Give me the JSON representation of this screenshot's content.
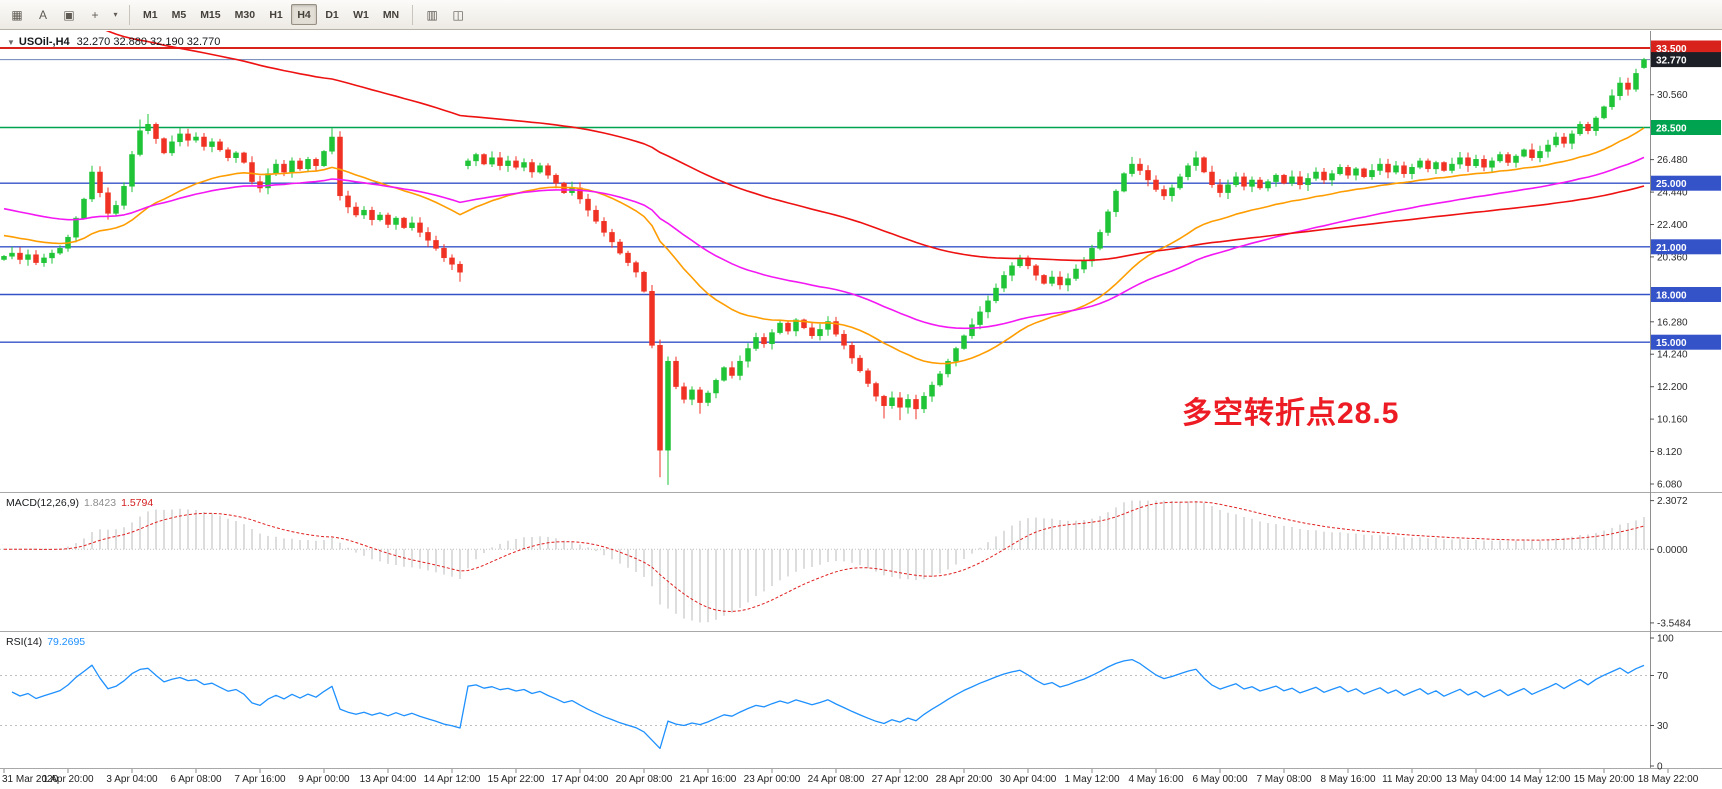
{
  "toolbar": {
    "left_icons": [
      {
        "name": "charts-bar-icon",
        "glyph": "▦"
      },
      {
        "name": "text-tool-icon",
        "glyph": "A"
      },
      {
        "name": "chart-window-icon",
        "glyph": "▣"
      },
      {
        "name": "crosshair-tool-icon",
        "glyph": "+"
      },
      {
        "name": "tools-dropdown-caret-icon",
        "glyph": "▾"
      }
    ],
    "timeframes": [
      "M1",
      "M5",
      "M15",
      "M30",
      "H1",
      "H4",
      "D1",
      "W1",
      "MN"
    ],
    "active_timeframe": "H4",
    "right_icons": [
      {
        "name": "tile-windows-icon",
        "glyph": "▥"
      },
      {
        "name": "new-chart-icon",
        "glyph": "◫"
      }
    ]
  },
  "chart": {
    "collapse_glyph": "▼",
    "symbol_period": "USOil-,H4",
    "ohlc": "32.270 32.880 32.190 32.770",
    "annotation": {
      "text": "多空转折点28.5",
      "color": "#ed1c24"
    }
  },
  "macd": {
    "label": "MACD(12,26,9)",
    "value_main": "1.8423",
    "value_signal": "1.5794",
    "axis": [
      "2.3072",
      "0.0000",
      "-3.5484"
    ]
  },
  "rsi": {
    "label": "RSI(14)",
    "value": "79.2695",
    "axis": [
      "100",
      "70",
      "30",
      "0"
    ]
  },
  "chart_data": {
    "type": "candlestick",
    "symbol": "USOil-",
    "timeframe": "H4",
    "ohlc_display": {
      "open": "32.270",
      "high": "32.880",
      "low": "32.190",
      "close": "32.770"
    },
    "y_ticks": [
      "30.560",
      "26.480",
      "24.440",
      "22.400",
      "20.360",
      "16.280",
      "14.240",
      "12.200",
      "10.160",
      "8.120",
      "6.080"
    ],
    "x_labels": [
      "31 Mar 2020",
      "1 Apr 20:00",
      "3 Apr 04:00",
      "6 Apr 08:00",
      "7 Apr 16:00",
      "9 Apr 00:00",
      "13 Apr 04:00",
      "14 Apr 12:00",
      "15 Apr 22:00",
      "17 Apr 04:00",
      "20 Apr 08:00",
      "21 Apr 16:00",
      "23 Apr 00:00",
      "24 Apr 08:00",
      "27 Apr 12:00",
      "28 Apr 20:00",
      "30 Apr 04:00",
      "1 May 12:00",
      "4 May 16:00",
      "6 May 00:00",
      "7 May 08:00",
      "8 May 16:00",
      "11 May 20:00",
      "13 May 04:00",
      "14 May 12:00",
      "15 May 20:00",
      "18 May 22:00"
    ],
    "closes": [
      20.4,
      20.6,
      20.2,
      20.5,
      20.0,
      20.3,
      20.6,
      20.9,
      21.6,
      22.8,
      24.0,
      25.7,
      24.4,
      23.1,
      23.6,
      24.8,
      26.8,
      28.3,
      28.7,
      27.8,
      26.9,
      27.6,
      28.1,
      27.7,
      27.9,
      27.3,
      27.6,
      27.1,
      26.6,
      26.9,
      26.3,
      25.1,
      24.7,
      25.6,
      26.2,
      25.7,
      26.4,
      25.9,
      26.5,
      26.1,
      27.0,
      27.9,
      24.2,
      23.5,
      23.0,
      23.3,
      22.7,
      23.0,
      22.4,
      22.8,
      22.2,
      22.5,
      21.9,
      21.4,
      20.9,
      20.3,
      19.9,
      19.4,
      26.4,
      26.8,
      26.2,
      26.6,
      26.1,
      26.4,
      26.0,
      26.3,
      25.7,
      26.1,
      25.5,
      25.0,
      24.4,
      24.7,
      24.0,
      23.3,
      22.6,
      21.9,
      21.3,
      20.6,
      20.0,
      19.4,
      18.2,
      14.8,
      8.2,
      13.8,
      12.2,
      11.4,
      12.0,
      11.2,
      11.8,
      12.6,
      13.4,
      12.9,
      13.8,
      14.6,
      15.3,
      14.9,
      15.6,
      16.2,
      15.7,
      16.4,
      15.9,
      15.4,
      15.8,
      16.3,
      15.5,
      14.8,
      14.0,
      13.2,
      12.4,
      11.6,
      11.0,
      11.5,
      10.9,
      11.4,
      10.8,
      11.6,
      12.3,
      13.0,
      13.8,
      14.6,
      15.4,
      16.1,
      16.9,
      17.6,
      18.4,
      19.2,
      19.8,
      20.3,
      19.8,
      19.2,
      18.7,
      19.1,
      18.6,
      19.0,
      19.6,
      20.1,
      20.9,
      21.9,
      23.2,
      24.5,
      25.6,
      26.2,
      25.8,
      25.2,
      24.6,
      24.2,
      24.7,
      25.4,
      26.1,
      26.6,
      25.7,
      24.9,
      24.4,
      24.9,
      25.4,
      24.8,
      25.2,
      24.7,
      25.1,
      25.5,
      25.0,
      25.4,
      24.9,
      25.3,
      25.7,
      25.2,
      25.6,
      26.0,
      25.5,
      25.9,
      25.4,
      25.8,
      26.2,
      25.7,
      26.1,
      25.6,
      26.0,
      26.4,
      25.9,
      26.3,
      25.8,
      26.2,
      26.6,
      26.1,
      26.5,
      26.0,
      26.4,
      26.8,
      26.3,
      26.7,
      27.1,
      26.6,
      27.0,
      27.4,
      27.9,
      27.5,
      28.1,
      28.7,
      28.3,
      29.1,
      29.8,
      30.5,
      31.3,
      30.9,
      31.9,
      32.77
    ],
    "open_overrides": {
      "0": 20.2,
      "58": 26.1,
      "205": 32.27
    },
    "high_overrides": {
      "17": 29.0,
      "18": 29.35,
      "41": 28.45,
      "83": 14.1,
      "141": 26.65,
      "149": 27.0,
      "205": 32.88
    },
    "low_overrides": {
      "57": 18.8,
      "82": 6.5,
      "83": 6.02,
      "87": 10.5,
      "110": 10.2,
      "112": 10.1,
      "114": 10.15,
      "205": 32.19
    },
    "price_lines": [
      {
        "label": "33.500",
        "price": 33.5,
        "line_color": "#d8231c",
        "badge_color": "#d8231c",
        "width": 2
      },
      {
        "label": "32.770",
        "price": 32.77,
        "line_color": "#6b83b6",
        "badge_color": "#1c2026",
        "width": 1
      },
      {
        "label": "28.500",
        "price": 28.5,
        "line_color": "#00a350",
        "badge_color": "#00a350",
        "width": 1.4
      },
      {
        "label": "25.000",
        "price": 25.0,
        "line_color": "#3553c9",
        "badge_color": "#3553c9",
        "width": 1.4
      },
      {
        "label": "21.000",
        "price": 21.0,
        "line_color": "#3553c9",
        "badge_color": "#3553c9",
        "width": 1.4
      },
      {
        "label": "18.000",
        "price": 18.0,
        "line_color": "#3553c9",
        "badge_color": "#3553c9",
        "width": 1.4
      },
      {
        "label": "15.000",
        "price": 15.0,
        "line_color": "#3553c9",
        "badge_color": "#3553c9",
        "width": 1.4
      }
    ],
    "overlays": [
      {
        "name": "ma-fast-orange",
        "color": "#ff9d00",
        "alpha": 0.07,
        "seed": 21.8
      },
      {
        "name": "ma-mid-magenta",
        "color": "#f318f3",
        "alpha": 0.035,
        "seed": 23.5
      },
      {
        "name": "ma-slow-red",
        "color": "#ee1111",
        "alpha": 0.017,
        "seed": 38
      }
    ],
    "macd_params": {
      "fast": 12,
      "slow": 26,
      "signal": 9,
      "range": [
        -3.5484,
        2.3072
      ]
    },
    "rsi_params": {
      "period": 14,
      "range": [
        0,
        100
      ],
      "levels": [
        70,
        30
      ]
    },
    "colors": {
      "up": "#1fc437",
      "down": "#f03224",
      "macd_hist": "#c6c6c6",
      "macd_signal": "#e02020",
      "rsi_line": "#1e90ff",
      "level_lines": "#c0c0c0"
    }
  }
}
